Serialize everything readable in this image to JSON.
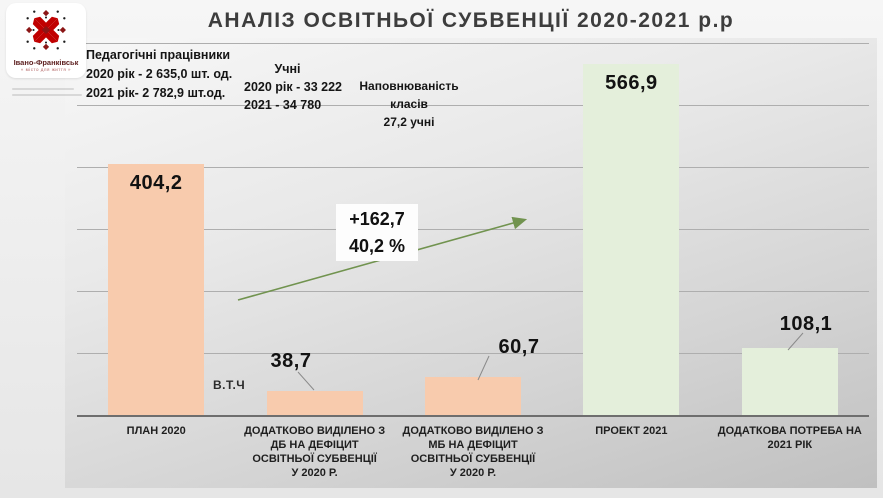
{
  "title": "АНАЛІЗ ОСВІТНЬОЇ СУБВЕНЦІЇ 2020-2021 р.р",
  "logo": {
    "city": "Івано-Франківськ",
    "tagline": "« місто для життя »",
    "emblem": "red-floral-cross-ornament",
    "emblem_color": "#c00000"
  },
  "info_boxes": {
    "teachers": {
      "bg": "#dfecd4",
      "lines": [
        "Педагогічні працівники",
        "2020 рік - 2 635,0 шт. од.",
        "2021 рік- 2 782,9 шт.од."
      ]
    },
    "students": {
      "bg": "#fff2cc",
      "title": "Учні",
      "lines": [
        "2020 рік - 33 222",
        "2021 - 34 780"
      ]
    },
    "class_capacity": {
      "bg": "#fbe3d3",
      "lines": [
        "Наповнюваність",
        "класів",
        "27,2 учні"
      ]
    }
  },
  "chart_data": {
    "type": "bar",
    "title": "АНАЛІЗ ОСВІТНЬОЇ СУБВЕНЦІЇ 2020-2021 р.р",
    "categories": [
      "ПЛАН 2020",
      "ДОДАТКОВО ВИДІЛЕНО З\nДБ  НА ДЕФІЦИТ\nОСВІТНЬОЇ СУБВЕНЦІЇ\nУ 2020 Р.",
      "ДОДАТКОВО ВИДІЛЕНО З\nМБ НА ДЕФІЦИТ\nОСВІТНЬОЇ СУБВЕНЦІЇ\nУ 2020 Р.",
      "ПРОЕКТ 2021",
      "ДОДАТКОВА ПОТРЕБА НА\n2021 РІК"
    ],
    "values": [
      404.2,
      38.7,
      60.7,
      566.9,
      108.1
    ],
    "value_labels": [
      "404,2",
      "38,7",
      "60,7",
      "566,9",
      "108,1"
    ],
    "bar_colors": [
      "#f8cbad",
      "#f8cbad",
      "#f8cbad",
      "#e4efdb",
      "#e4efdb"
    ],
    "ylim": [
      0,
      600
    ],
    "gridline_step": 100,
    "grid": true,
    "legend": false,
    "xlabel": "",
    "ylabel": "",
    "extra_label": "В.Т.Ч",
    "annotation": {
      "line1": "+162,7",
      "line2": "40,2 %",
      "arrow_color": "#71934f"
    }
  }
}
